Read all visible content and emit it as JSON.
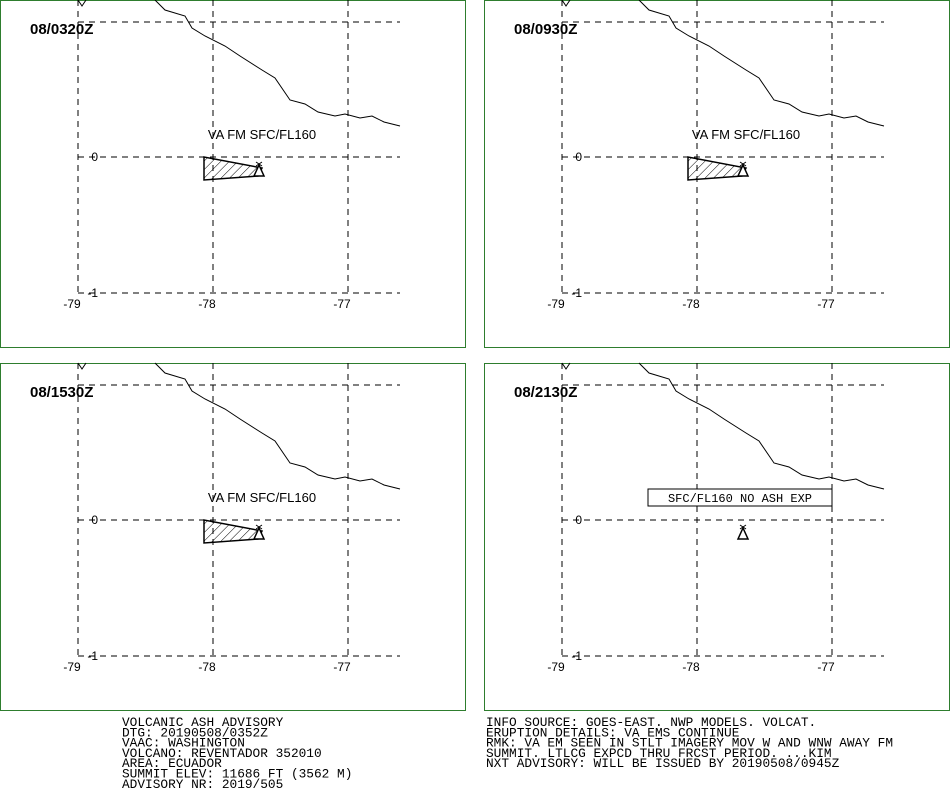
{
  "panels": [
    {
      "time": "08/0320Z",
      "label": "VA FM SFC/FL160"
    },
    {
      "time": "08/0930Z",
      "label": "VA FM SFC/FL160"
    },
    {
      "time": "08/1530Z",
      "label": "VA FM SFC/FL160"
    },
    {
      "time": "08/2130Z",
      "box_label": "SFC/FL160 NO ASH EXP"
    }
  ],
  "lon_ticks": [
    -79,
    -78,
    -77
  ],
  "lat_ticks": [
    0,
    -1
  ],
  "advisory_left": [
    "VOLCANIC ASH ADVISORY",
    "DTG: 20190508/0352Z",
    "VAAC: WASHINGTON",
    "VOLCANO: REVENTADOR 352010",
    "AREA: ECUADOR",
    "SUMMIT ELEV: 11686 FT (3562 M)",
    "ADVISORY NR: 2019/505"
  ],
  "advisory_right": [
    "INFO SOURCE: GOES-EAST. NWP MODELS. VOLCAT.",
    "ERUPTION DETAILS: VA EMS CONTINUE",
    "RMK: VA EM SEEN IN STLT IMAGERY MOV W AND WNW AWAY FM",
    "SUMMIT. LTLCG EXPCD THRU FRCST PERIOD. ...KIM",
    "NXT ADVISORY: WILL BE ISSUED BY 20190508/0945Z"
  ]
}
